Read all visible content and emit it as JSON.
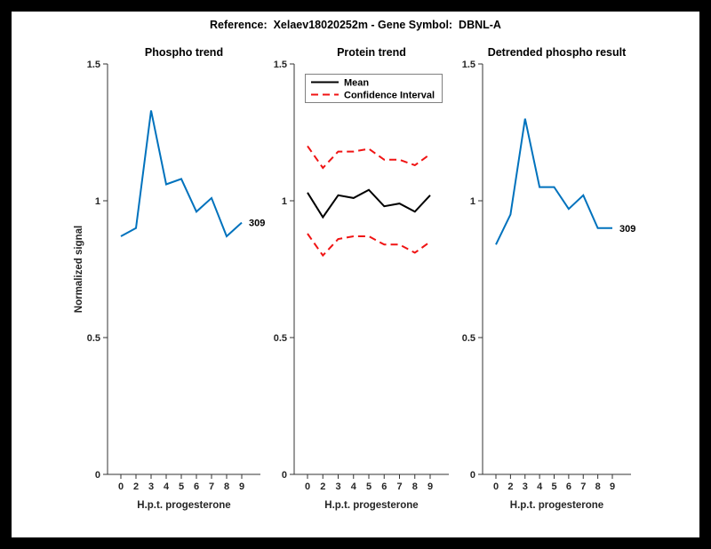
{
  "window": {
    "title": "Reference:  Xelaev18020252m - Gene Symbol:  DBNL-A"
  },
  "colors": {
    "blue": "#0072BD",
    "red": "#f01414",
    "black": "#000000",
    "axis": "#333333",
    "tick_label": "#262626",
    "title_text": "#000000",
    "frame": "#000000",
    "plot_background": "#ffffff",
    "legend_border": "#808080"
  },
  "axes_common": {
    "x_tick_labels": [
      "0",
      "2",
      "3",
      "4",
      "5",
      "6",
      "7",
      "8",
      "9"
    ],
    "xlabel": "H.p.t. progesterone",
    "y_tick_labels": [
      "0",
      "0.5",
      "1",
      "1.5"
    ],
    "y_ticks": [
      0,
      0.5,
      1,
      1.5
    ],
    "ylim": [
      0,
      1.5
    ],
    "ylabel": "Normalized signal",
    "grid": false
  },
  "chart_data": [
    {
      "type": "line",
      "title": "Phospho trend",
      "x": [
        0,
        2,
        3,
        4,
        5,
        6,
        7,
        8,
        9
      ],
      "xlabel": "H.p.t. progesterone",
      "ylabel": "Normalized signal",
      "ylim": [
        0,
        1.5
      ],
      "legend_position": "none",
      "series": [
        {
          "name": "phospho-signal",
          "color": "blue",
          "style": "solid",
          "values": [
            0.87,
            0.9,
            1.33,
            1.06,
            1.08,
            0.96,
            1.01,
            0.87,
            0.92
          ]
        }
      ],
      "end_label": "309"
    },
    {
      "type": "line",
      "title": "Protein trend",
      "x": [
        0,
        2,
        3,
        4,
        5,
        6,
        7,
        8,
        9
      ],
      "xlabel": "H.p.t. progesterone",
      "ylabel": "",
      "ylim": [
        0,
        1.5
      ],
      "legend_position": "top-left",
      "legend": [
        {
          "label": "Mean",
          "color": "black",
          "style": "solid"
        },
        {
          "label": "Confidence Interval",
          "color": "red",
          "style": "dashed"
        }
      ],
      "series": [
        {
          "name": "ci-upper",
          "color": "red",
          "style": "dashed",
          "values": [
            1.2,
            1.12,
            1.18,
            1.18,
            1.19,
            1.15,
            1.15,
            1.13,
            1.17
          ]
        },
        {
          "name": "mean",
          "color": "black",
          "style": "solid",
          "values": [
            1.03,
            0.94,
            1.02,
            1.01,
            1.04,
            0.98,
            0.99,
            0.96,
            1.02
          ]
        },
        {
          "name": "ci-lower",
          "color": "red",
          "style": "dashed",
          "values": [
            0.88,
            0.8,
            0.86,
            0.87,
            0.87,
            0.84,
            0.84,
            0.81,
            0.85
          ]
        }
      ],
      "end_label": ""
    },
    {
      "type": "line",
      "title": "Detrended phospho result",
      "x": [
        0,
        2,
        3,
        4,
        5,
        6,
        7,
        8,
        9
      ],
      "xlabel": "H.p.t. progesterone",
      "ylabel": "",
      "ylim": [
        0,
        1.5
      ],
      "legend_position": "none",
      "series": [
        {
          "name": "detrended-phospho-signal",
          "color": "blue",
          "style": "solid",
          "values": [
            0.84,
            0.95,
            1.3,
            1.05,
            1.05,
            0.97,
            1.02,
            0.9,
            0.9
          ]
        }
      ],
      "end_label": "309"
    }
  ]
}
